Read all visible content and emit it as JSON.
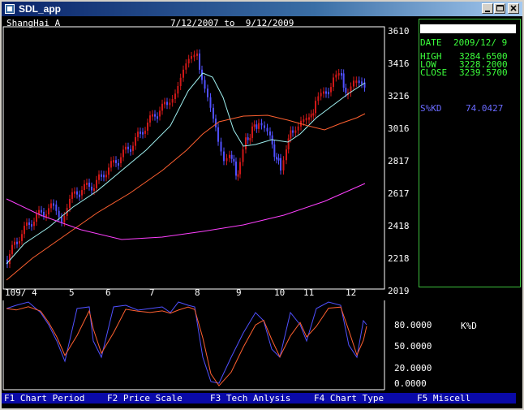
{
  "window": {
    "title": "SDL_app"
  },
  "header": {
    "stock_name": "ShangHai A",
    "date_range": "7/12/2007 to  9/12/2009"
  },
  "main_chart": {
    "y_ticks": [
      "3610",
      "3416",
      "3216",
      "3016",
      "2817",
      "2617",
      "2418",
      "2218",
      "2019"
    ],
    "x_ticks": [
      "109/ 4",
      "5",
      "6",
      "7",
      "8",
      "9",
      "10",
      "11",
      "12"
    ],
    "colors": {
      "up": "#d01818",
      "down": "#5050ff",
      "ma_short": "#9ff0f0",
      "ma_mid": "#ff6030",
      "ma_long": "#ff40ff",
      "axis": "#ffffff"
    }
  },
  "info_panel": {
    "date_label": "DATE",
    "date_value": "2009/12/ 9",
    "high_label": "HIGH",
    "high_value": "3284.6500",
    "low_label": "LOW",
    "low_value": "3228.2000",
    "close_label": "CLOSE",
    "close_value": "3239.5700",
    "kd_label": "S%KD",
    "kd_value": "74.0427"
  },
  "oscillator": {
    "label": "K%D",
    "y_ticks": [
      "80.0000",
      "50.0000",
      "20.0000",
      "0.0000"
    ],
    "colors": {
      "k": "#5050ff",
      "d": "#ff6030"
    }
  },
  "function_keys": [
    {
      "key": "F1",
      "label": "Chart Period"
    },
    {
      "key": "F2",
      "label": "Price Scale"
    },
    {
      "key": "F3",
      "label": "Tech Anlysis"
    },
    {
      "key": "F4",
      "label": "Chart Type"
    },
    {
      "key": "F5",
      "label": "Miscell"
    }
  ]
}
